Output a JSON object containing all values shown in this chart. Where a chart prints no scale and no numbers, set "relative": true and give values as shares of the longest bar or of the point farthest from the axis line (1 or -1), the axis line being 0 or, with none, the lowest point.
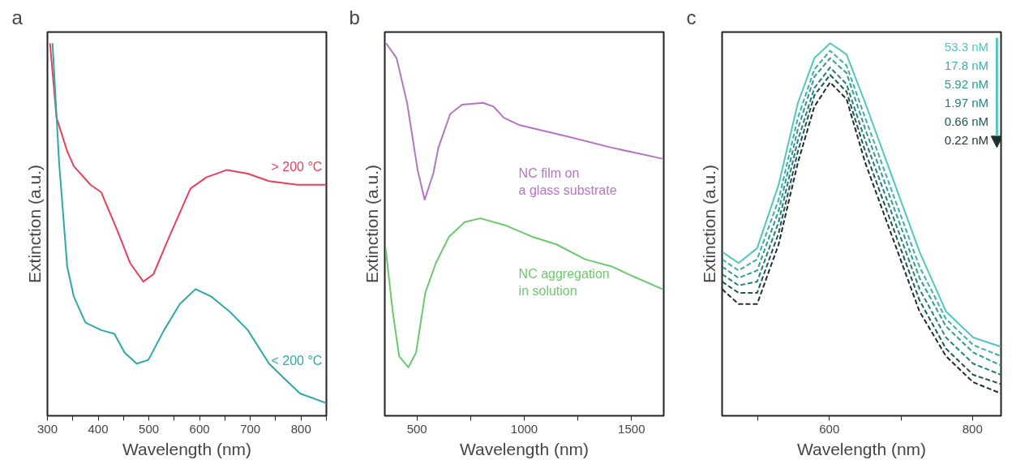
{
  "chart_data": [
    {
      "type": "line",
      "title": "a",
      "xlabel": "Wavelength (nm)",
      "ylabel": "Extinction (a.u.)",
      "relative": true,
      "tick_labels": "x",
      "legend": false,
      "grid": false,
      "xlim": [
        300,
        850
      ],
      "xticks": [
        300,
        {
          "value": 350,
          "label": null
        },
        400,
        {
          "value": 450,
          "label": null
        },
        500,
        {
          "value": 550,
          "label": null
        },
        600,
        {
          "value": 650,
          "label": null
        },
        700,
        {
          "value": 750,
          "label": null
        },
        800,
        {
          "value": 850,
          "label": null
        }
      ],
      "series": [
        {
          "name": "> 200 °C",
          "color": "#e8405a",
          "x": [
            305,
            318,
            339,
            352,
            385,
            406,
            437,
            463,
            489,
            509,
            540,
            582,
            613,
            654,
            695,
            737,
            793,
            850
          ],
          "values": [
            1.0,
            0.8,
            0.71,
            0.67,
            0.62,
            0.6,
            0.5,
            0.41,
            0.36,
            0.38,
            0.48,
            0.61,
            0.64,
            0.66,
            0.65,
            0.63,
            0.62,
            0.62
          ]
        },
        {
          "name": "< 200 °C",
          "color": "#2aa9a5",
          "x": [
            310,
            323,
            339,
            352,
            375,
            406,
            432,
            452,
            476,
            499,
            530,
            561,
            592,
            623,
            659,
            695,
            737,
            767,
            798,
            850
          ],
          "values": [
            1.0,
            0.68,
            0.4,
            0.32,
            0.25,
            0.23,
            0.22,
            0.17,
            0.14,
            0.15,
            0.23,
            0.3,
            0.34,
            0.32,
            0.28,
            0.23,
            0.14,
            0.1,
            0.06,
            0.034
          ]
        }
      ]
    },
    {
      "type": "line",
      "title": "b",
      "xlabel": "Wavelength (nm)",
      "ylabel": "Extinction (a.u.)",
      "relative": true,
      "tick_labels": "x",
      "legend": false,
      "grid": false,
      "xlim": [
        350,
        1650
      ],
      "xticks": [
        500,
        {
          "value": 750,
          "label": null
        },
        1000,
        {
          "value": 1250,
          "label": null
        },
        1500
      ],
      "series": [
        {
          "name": "NC film on\na glass substrate",
          "color": "#b574c2",
          "x": [
            356,
            405,
            454,
            503,
            536,
            576,
            600,
            655,
            710,
            808,
            857,
            905,
            979,
            1198,
            1406,
            1644
          ],
          "values": [
            1.0,
            0.96,
            0.84,
            0.66,
            0.58,
            0.65,
            0.72,
            0.81,
            0.835,
            0.84,
            0.83,
            0.8,
            0.78,
            0.75,
            0.72,
            0.69
          ]
        },
        {
          "name": "NC aggregation\nin solution",
          "color": "#6cc86c",
          "x": [
            354,
            387,
            417,
            460,
            496,
            539,
            588,
            649,
            722,
            796,
            918,
            1040,
            1150,
            1284,
            1412,
            1504,
            1644
          ],
          "values": [
            0.45,
            0.28,
            0.16,
            0.13,
            0.17,
            0.33,
            0.41,
            0.48,
            0.52,
            0.53,
            0.51,
            0.48,
            0.46,
            0.42,
            0.4,
            0.375,
            0.34
          ]
        }
      ]
    },
    {
      "type": "line",
      "title": "c",
      "xlabel": "Wavelength (nm)",
      "ylabel": "Extinction (a.u.)",
      "relative": true,
      "tick_labels": "x",
      "legend": "top right",
      "grid": false,
      "xlim": [
        450,
        840
      ],
      "xticks": [
        {
          "value": 500,
          "label": null
        },
        600,
        {
          "value": 700,
          "label": null
        },
        800
      ],
      "x": [
        450,
        473,
        499,
        529,
        556,
        579,
        601,
        624,
        650,
        688,
        726,
        763,
        801,
        840
      ],
      "series": [
        {
          "name": "53.3 nM",
          "color": "#4fc6c0",
          "line_style": "solid",
          "values": [
            0.44,
            0.41,
            0.45,
            0.62,
            0.84,
            0.96,
            1.0,
            0.97,
            0.84,
            0.64,
            0.44,
            0.28,
            0.21,
            0.185
          ]
        },
        {
          "name": "17.8 nM",
          "color": "#3aaea8",
          "line_style": "dashed",
          "values": [
            0.42,
            0.39,
            0.42,
            0.58,
            0.8,
            0.93,
            0.98,
            0.94,
            0.8,
            0.6,
            0.4,
            0.26,
            0.19,
            0.16
          ]
        },
        {
          "name": "5.92 nM",
          "color": "#2e9a94",
          "line_style": "dashed",
          "values": [
            0.4,
            0.37,
            0.39,
            0.55,
            0.77,
            0.91,
            0.96,
            0.92,
            0.77,
            0.57,
            0.37,
            0.24,
            0.17,
            0.135
          ]
        },
        {
          "name": "1.97 nM",
          "color": "#237f7a",
          "line_style": "dashed",
          "values": [
            0.38,
            0.35,
            0.36,
            0.52,
            0.74,
            0.88,
            0.935,
            0.89,
            0.74,
            0.54,
            0.34,
            0.21,
            0.14,
            0.11
          ]
        },
        {
          "name": "0.66 nM",
          "color": "#1f5552",
          "line_style": "dashed",
          "values": [
            0.36,
            0.33,
            0.33,
            0.49,
            0.71,
            0.86,
            0.915,
            0.87,
            0.71,
            0.51,
            0.31,
            0.18,
            0.11,
            0.085
          ]
        },
        {
          "name": "0.22 nM",
          "color": "#1e2e2d",
          "line_style": "dashed",
          "values": [
            0.34,
            0.3,
            0.3,
            0.46,
            0.68,
            0.83,
            0.895,
            0.85,
            0.68,
            0.48,
            0.28,
            0.16,
            0.09,
            0.06
          ]
        }
      ]
    }
  ]
}
